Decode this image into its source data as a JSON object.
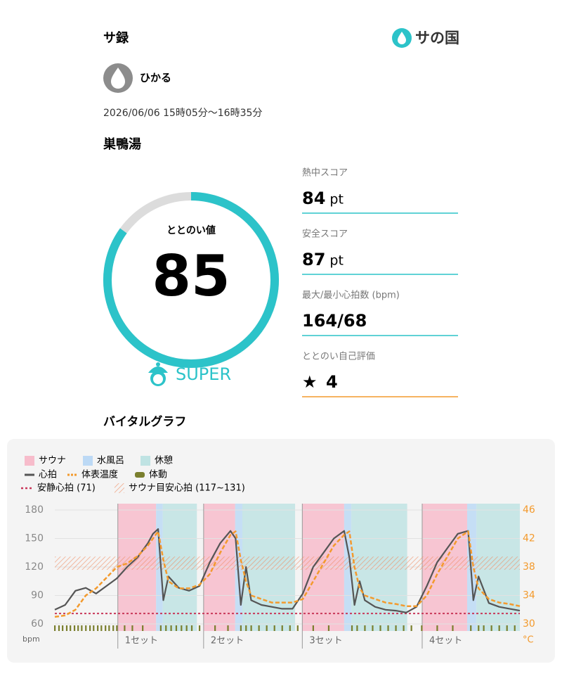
{
  "header": {
    "title": "サ録",
    "brand": "サの国"
  },
  "user": {
    "name": "ひかる"
  },
  "visit": {
    "datetime": "2026/06/06 15時05分〜16時35分",
    "facility": "巣鴨湯"
  },
  "score": {
    "label": "ととのい値",
    "value": 85,
    "range": [
      0,
      100
    ],
    "grade": "SUPER"
  },
  "stats": [
    {
      "label": "熱中スコア",
      "value": 84,
      "unit": "pt"
    },
    {
      "label": "安全スコア",
      "value": 87,
      "unit": "pt"
    },
    {
      "label": "最大/最小心拍数 (bpm)",
      "value": "164/68"
    },
    {
      "label": "ととのい自己評価",
      "value": 4
    }
  ],
  "section_title": "バイタルグラフ",
  "chart_data": {
    "type": "line",
    "xlim": [
      0,
      90
    ],
    "xticks": [
      {
        "value": 12.2,
        "label": "1セット"
      },
      {
        "value": 28.8,
        "label": "2セット"
      },
      {
        "value": 47.9,
        "label": "3セット"
      },
      {
        "value": 71.1,
        "label": "4セット"
      }
    ],
    "ylim": [
      60,
      180
    ],
    "yticks": [
      60,
      90,
      120,
      150,
      180
    ],
    "ylabel": "bpm",
    "y2lim": [
      30,
      46
    ],
    "y2ticks": [
      30,
      34,
      38,
      42,
      46
    ],
    "y2label": "°C",
    "phases": [
      {
        "name": "サウナ",
        "color": "#f7bccb",
        "spans": [
          [
            12.2,
            19.6
          ],
          [
            28.8,
            34.9
          ],
          [
            47.9,
            56.0
          ],
          [
            71.1,
            79.8
          ]
        ]
      },
      {
        "name": "水風呂",
        "color": "#bcd9f5",
        "spans": [
          [
            19.6,
            20.9
          ],
          [
            34.9,
            36.3
          ],
          [
            56.0,
            57.4
          ],
          [
            79.8,
            81.6
          ]
        ]
      },
      {
        "name": "休憩",
        "color": "#bfe3e3",
        "spans": [
          [
            20.9,
            27.5
          ],
          [
            36.3,
            46.5
          ],
          [
            57.4,
            68.2
          ],
          [
            81.6,
            90
          ]
        ]
      }
    ],
    "x": [
      0,
      2,
      4,
      6,
      8,
      10,
      12,
      14,
      16,
      18,
      19,
      20,
      21,
      22,
      24,
      26,
      28,
      30,
      32,
      34,
      35,
      36,
      37,
      38,
      40,
      42,
      44,
      46,
      48,
      50,
      52,
      54,
      56,
      57,
      58,
      59,
      60,
      62,
      64,
      66,
      68,
      70,
      72,
      74,
      76,
      78,
      80,
      81,
      82,
      84,
      86,
      88,
      90
    ],
    "series": [
      {
        "name": "心拍",
        "color": "#555555",
        "axis": "y",
        "values": [
          75,
          80,
          95,
          98,
          92,
          100,
          108,
          120,
          130,
          145,
          155,
          160,
          85,
          110,
          98,
          95,
          100,
          125,
          145,
          158,
          150,
          80,
          120,
          85,
          80,
          78,
          76,
          76,
          92,
          120,
          135,
          150,
          158,
          130,
          80,
          105,
          85,
          78,
          75,
          74,
          72,
          78,
          100,
          125,
          140,
          155,
          158,
          85,
          110,
          82,
          78,
          76,
          74
        ]
      },
      {
        "name": "体表温度",
        "color": "#f39a2d",
        "axis": "y2",
        "values": [
          31,
          31.2,
          32,
          34,
          35,
          36.5,
          38,
          38.5,
          39.5,
          41,
          42,
          43,
          39,
          36,
          35,
          35,
          35.5,
          37,
          40,
          42.5,
          43,
          39,
          36,
          34,
          33.5,
          33,
          33,
          33,
          33.5,
          36,
          38.5,
          41,
          42.5,
          43,
          38,
          35,
          34,
          33.5,
          33,
          32.8,
          32.5,
          32.5,
          34,
          37,
          39.5,
          42,
          43,
          38,
          35,
          33.5,
          33,
          32.8,
          32.5
        ]
      }
    ],
    "activity": {
      "name": "体動",
      "color": "#7a7f2e",
      "x": [
        0,
        0.8,
        1.5,
        2.3,
        3,
        3.8,
        4.5,
        5.2,
        6,
        6.8,
        7.5,
        8.3,
        9,
        9.8,
        10.5,
        11.3,
        12,
        13.5,
        15,
        17,
        20.5,
        21.5,
        22.5,
        23.5,
        24.5,
        25.5,
        26.5,
        28,
        31,
        33.5,
        36,
        37,
        38,
        39.5,
        41,
        42.5,
        44,
        45.5,
        47,
        50,
        53,
        57.5,
        58.5,
        60,
        61.5,
        63,
        64.5,
        66,
        67.5,
        69,
        71,
        74,
        77,
        80.5,
        82,
        83,
        84.5,
        86,
        87.5,
        89
      ]
    },
    "resting": {
      "name": "安静心拍 (71)",
      "value": 71,
      "color": "#c9385a"
    },
    "target": {
      "name": "サウナ目安心拍 (117~131)",
      "range": [
        117,
        131
      ],
      "color": "#f08a5d"
    }
  }
}
